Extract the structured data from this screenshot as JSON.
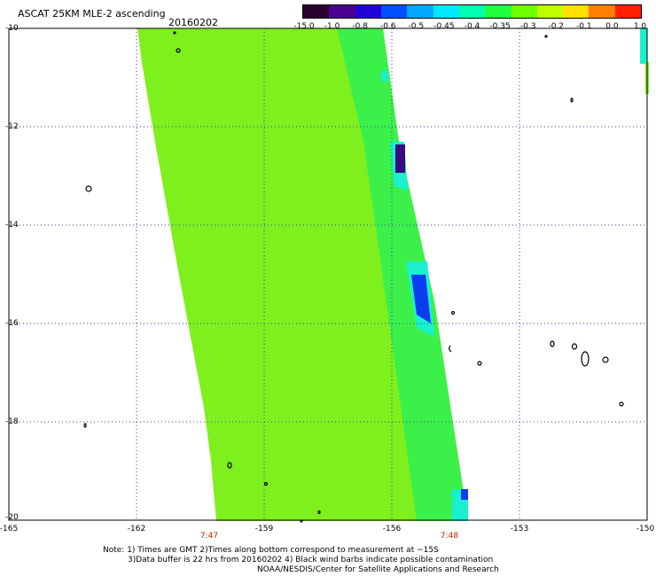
{
  "header": {
    "title": "ASCAT 25KM MLE-2 ascending",
    "date": "20160202"
  },
  "colorbar": {
    "labels": [
      "-15.0",
      "-1.0",
      "-0.8",
      "-0.6",
      "-0.5",
      "-0.45",
      "-0.4",
      "-0.35",
      "-0.3",
      "-0.2",
      "-0.1",
      "0.0",
      "1.0"
    ],
    "colors": [
      "#2a0030",
      "#4a0090",
      "#2200d8",
      "#0050ff",
      "#00a8ff",
      "#00e8ff",
      "#00ffb0",
      "#20ff40",
      "#70ff00",
      "#c0ff00",
      "#ffe000",
      "#ff8000",
      "#ff2000"
    ]
  },
  "axes": {
    "lat_labels": [
      "-10",
      "-12",
      "-14",
      "-16",
      "-18",
      "-20"
    ],
    "lon_labels": [
      "-165",
      "-162",
      "-159",
      "-156",
      "-153",
      "-150"
    ],
    "lat_range": [
      -20,
      -10
    ],
    "lon_range": [
      -165,
      -150
    ]
  },
  "times": [
    "7:47",
    "7:48"
  ],
  "notes": {
    "line1": "Note: 1) Times are GMT 2)Times along bottom correspond to measurement at ~15S",
    "line2": "3)Data buffer is 22 hrs from 20160202 4) Black wind barbs indicate possible contamination",
    "line3": "NOAA/NESDIS/Center for Satellite Applications and Research"
  },
  "swath": {
    "main_color": "#7ef01e",
    "edge_color": "#3cf04a",
    "cyan_color": "#18f0d0",
    "blue_color": "#0a3cf0",
    "purple_color": "#3a0a80"
  }
}
